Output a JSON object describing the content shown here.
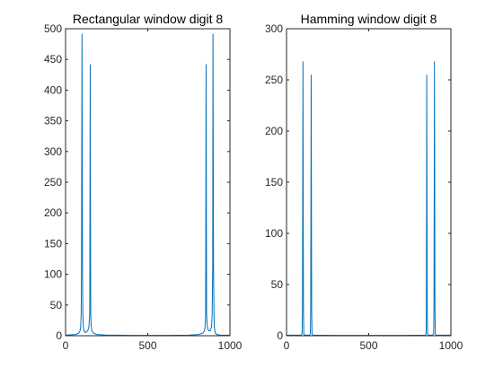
{
  "chart_data": [
    {
      "type": "line",
      "title": "Rectangular window digit 8",
      "xlabel": "",
      "ylabel": "",
      "xlim": [
        0,
        1000
      ],
      "ylim": [
        0,
        500
      ],
      "xticks": [
        0,
        500,
        1000
      ],
      "yticks": [
        0,
        50,
        100,
        150,
        200,
        250,
        300,
        350,
        400,
        450,
        500
      ],
      "grid": false,
      "color": "#0072BD",
      "series": [
        {
          "x": [
            0,
            60,
            80,
            88,
            92,
            95,
            97,
            100,
            103,
            105,
            108,
            112,
            120,
            135,
            142,
            147,
            150,
            153,
            156,
            160,
            170,
            190,
            250,
            400,
            500,
            600,
            750,
            810,
            835,
            845,
            849,
            852,
            855,
            858,
            862,
            870,
            880,
            888,
            892,
            895,
            897,
            900,
            903,
            905,
            908,
            912,
            920,
            940,
            1000
          ],
          "y": [
            1,
            2,
            4,
            8,
            15,
            35,
            110,
            492,
            110,
            35,
            15,
            8,
            5,
            8,
            15,
            35,
            442,
            35,
            15,
            8,
            4,
            2,
            1,
            0.5,
            0.5,
            0.5,
            1,
            2,
            4,
            8,
            15,
            35,
            442,
            35,
            15,
            8,
            8,
            15,
            35,
            110,
            492,
            110,
            35,
            15,
            8,
            4,
            2,
            1,
            1
          ]
        }
      ]
    },
    {
      "type": "line",
      "title": "Hamming window digit 8",
      "xlabel": "",
      "ylabel": "",
      "xlim": [
        0,
        1000
      ],
      "ylim": [
        0,
        300
      ],
      "xticks": [
        0,
        500,
        1000
      ],
      "yticks": [
        0,
        50,
        100,
        150,
        200,
        250,
        300
      ],
      "grid": false,
      "color": "#0072BD",
      "series": [
        {
          "x": [
            0,
            90,
            95,
            97,
            100,
            103,
            105,
            110,
            140,
            145,
            147,
            150,
            153,
            155,
            160,
            300,
            500,
            700,
            845,
            849,
            851,
            853,
            856,
            858,
            860,
            890,
            895,
            897,
            900,
            903,
            905,
            910,
            1000
          ],
          "y": [
            0.5,
            0.5,
            2,
            25,
            268,
            25,
            2,
            0.5,
            0.5,
            2,
            25,
            255,
            25,
            2,
            0.5,
            0.3,
            0.3,
            0.3,
            0.5,
            2,
            25,
            255,
            25,
            2,
            0.5,
            0.5,
            2,
            25,
            268,
            25,
            2,
            0.5,
            0.5
          ]
        }
      ]
    }
  ]
}
